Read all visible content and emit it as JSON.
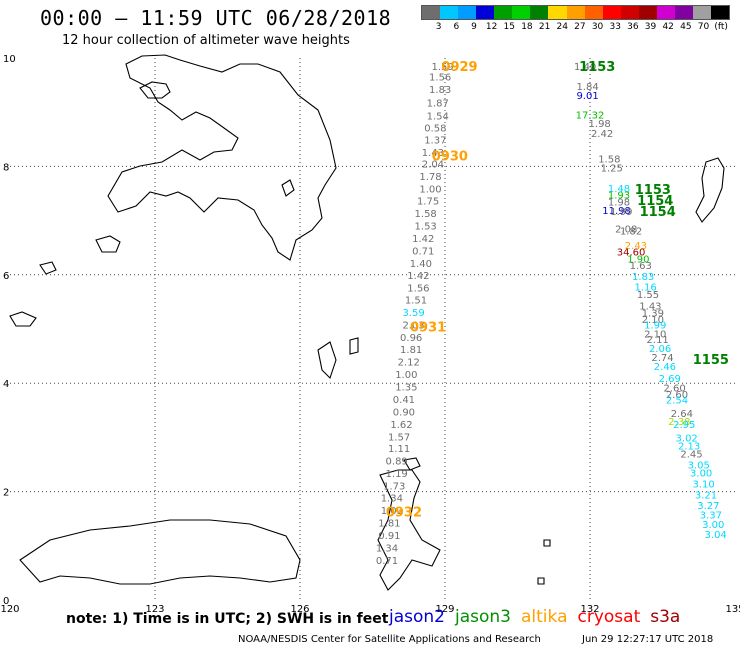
{
  "header": {
    "title": "00:00 — 11:59 UTC 06/28/2018",
    "subtitle": "12 hour collection of altimeter wave heights"
  },
  "colorbar": {
    "unit_label": "(ft)",
    "labels": [
      "3",
      "6",
      "9",
      "12",
      "15",
      "18",
      "21",
      "24",
      "27",
      "30",
      "33",
      "36",
      "39",
      "42",
      "45",
      "70"
    ],
    "colors": [
      "#6e6e6e",
      "#00c8ff",
      "#009cff",
      "#0000d8",
      "#00a000",
      "#00d000",
      "#008000",
      "#ffd800",
      "#ffa000",
      "#ff6000",
      "#ff0000",
      "#d00000",
      "#a00000",
      "#d000d0",
      "#8000a0",
      "#a0a0a0",
      "#000000"
    ]
  },
  "map": {
    "lon_ticks": [
      "120",
      "123",
      "126",
      "129",
      "132",
      "135"
    ],
    "lat_ticks": [
      "10",
      "8",
      "6",
      "4",
      "2",
      "0"
    ],
    "lon_range": [
      120,
      135
    ],
    "lat_range": [
      0,
      10
    ]
  },
  "tracks": [
    {
      "id": "west",
      "readings": [
        {
          "v": "1.59",
          "lon": 128.95,
          "lat": 9.85,
          "color": "#6e6e6e"
        },
        {
          "v": "1.56",
          "lon": 128.9,
          "lat": 9.66,
          "color": "#6e6e6e"
        },
        {
          "v": "1.83",
          "lon": 128.9,
          "lat": 9.43,
          "color": "#6e6e6e"
        },
        {
          "v": "1.87",
          "lon": 128.85,
          "lat": 9.18,
          "color": "#6e6e6e"
        },
        {
          "v": "1.54",
          "lon": 128.85,
          "lat": 8.94,
          "color": "#6e6e6e"
        },
        {
          "v": "0.58",
          "lon": 128.8,
          "lat": 8.72,
          "color": "#6e6e6e"
        },
        {
          "v": "1.37",
          "lon": 128.8,
          "lat": 8.5,
          "color": "#6e6e6e"
        },
        {
          "v": "1.43",
          "lon": 128.75,
          "lat": 8.27,
          "color": "#6e6e6e"
        },
        {
          "v": "2.04",
          "lon": 128.75,
          "lat": 8.05,
          "color": "#6e6e6e"
        },
        {
          "v": "1.78",
          "lon": 128.7,
          "lat": 7.82,
          "color": "#6e6e6e"
        },
        {
          "v": "1.00",
          "lon": 128.7,
          "lat": 7.59,
          "color": "#6e6e6e"
        },
        {
          "v": "1.75",
          "lon": 128.65,
          "lat": 7.37,
          "color": "#6e6e6e"
        },
        {
          "v": "1.58",
          "lon": 128.6,
          "lat": 7.14,
          "color": "#6e6e6e"
        },
        {
          "v": "1.53",
          "lon": 128.6,
          "lat": 6.91,
          "color": "#6e6e6e"
        },
        {
          "v": "1.42",
          "lon": 128.55,
          "lat": 6.68,
          "color": "#6e6e6e"
        },
        {
          "v": "0.71",
          "lon": 128.55,
          "lat": 6.45,
          "color": "#6e6e6e"
        },
        {
          "v": "1.40",
          "lon": 128.5,
          "lat": 6.22,
          "color": "#6e6e6e"
        },
        {
          "v": "1.42",
          "lon": 128.45,
          "lat": 6.0,
          "color": "#6e6e6e"
        },
        {
          "v": "1.56",
          "lon": 128.45,
          "lat": 5.77,
          "color": "#6e6e6e"
        },
        {
          "v": "1.51",
          "lon": 128.4,
          "lat": 5.54,
          "color": "#6e6e6e"
        },
        {
          "v": "3.59",
          "lon": 128.35,
          "lat": 5.31,
          "color": "#00d8ff"
        },
        {
          "v": "2.03",
          "lon": 128.35,
          "lat": 5.08,
          "color": "#6e6e6e"
        },
        {
          "v": "0.96",
          "lon": 128.3,
          "lat": 4.85,
          "color": "#6e6e6e"
        },
        {
          "v": "1.81",
          "lon": 128.3,
          "lat": 4.63,
          "color": "#6e6e6e"
        },
        {
          "v": "2.12",
          "lon": 128.25,
          "lat": 4.4,
          "color": "#6e6e6e"
        },
        {
          "v": "1.00",
          "lon": 128.2,
          "lat": 4.17,
          "color": "#6e6e6e"
        },
        {
          "v": "1.35",
          "lon": 128.2,
          "lat": 3.94,
          "color": "#6e6e6e"
        },
        {
          "v": "0.41",
          "lon": 128.15,
          "lat": 3.71,
          "color": "#6e6e6e"
        },
        {
          "v": "0.90",
          "lon": 128.15,
          "lat": 3.48,
          "color": "#6e6e6e"
        },
        {
          "v": "1.62",
          "lon": 128.1,
          "lat": 3.25,
          "color": "#6e6e6e"
        },
        {
          "v": "1.57",
          "lon": 128.05,
          "lat": 3.02,
          "color": "#6e6e6e"
        },
        {
          "v": "1.11",
          "lon": 128.05,
          "lat": 2.8,
          "color": "#6e6e6e"
        },
        {
          "v": "0.89",
          "lon": 128.0,
          "lat": 2.57,
          "color": "#6e6e6e"
        },
        {
          "v": "1.19",
          "lon": 128.0,
          "lat": 2.34,
          "color": "#6e6e6e"
        },
        {
          "v": "1.73",
          "lon": 127.95,
          "lat": 2.11,
          "color": "#6e6e6e"
        },
        {
          "v": "1.34",
          "lon": 127.9,
          "lat": 1.89,
          "color": "#6e6e6e"
        },
        {
          "v": "1.03",
          "lon": 127.9,
          "lat": 1.66,
          "color": "#6e6e6e"
        },
        {
          "v": "1.81",
          "lon": 127.85,
          "lat": 1.43,
          "color": "#6e6e6e"
        },
        {
          "v": "0.91",
          "lon": 127.85,
          "lat": 1.2,
          "color": "#6e6e6e"
        },
        {
          "v": "1.34",
          "lon": 127.8,
          "lat": 0.97,
          "color": "#6e6e6e"
        },
        {
          "v": "0.71",
          "lon": 127.8,
          "lat": 0.74,
          "color": "#6e6e6e"
        }
      ]
    },
    {
      "id": "east",
      "readings": [
        {
          "v": "1.40",
          "lon": 131.9,
          "lat": 9.85,
          "color": "#6e6e6e"
        },
        {
          "v": "1.84",
          "lon": 131.95,
          "lat": 9.48,
          "color": "#6e6e6e"
        },
        {
          "v": "9.01",
          "lon": 131.95,
          "lat": 9.32,
          "color": "#0000d8"
        },
        {
          "v": "17.32",
          "lon": 132.0,
          "lat": 8.96,
          "color": "#00c000"
        },
        {
          "v": "1.98",
          "lon": 132.2,
          "lat": 8.8,
          "color": "#6e6e6e"
        },
        {
          "v": "2.42",
          "lon": 132.25,
          "lat": 8.62,
          "color": "#6e6e6e"
        },
        {
          "v": "1.58",
          "lon": 132.4,
          "lat": 8.15,
          "color": "#6e6e6e"
        },
        {
          "v": "1.25",
          "lon": 132.45,
          "lat": 7.98,
          "color": "#6e6e6e"
        },
        {
          "v": "1.48",
          "lon": 132.6,
          "lat": 7.6,
          "color": "#00d8ff"
        },
        {
          "v": "1.93",
          "lon": 132.6,
          "lat": 7.48,
          "color": "#00c000"
        },
        {
          "v": "1.98",
          "lon": 132.6,
          "lat": 7.35,
          "color": "#6e6e6e"
        },
        {
          "v": "11.98",
          "lon": 132.55,
          "lat": 7.2,
          "color": "#0000d8"
        },
        {
          "v": "1.99",
          "lon": 132.65,
          "lat": 7.18,
          "color": "#6e6e6e"
        },
        {
          "v": "2.08",
          "lon": 132.75,
          "lat": 6.85,
          "color": "#6e6e6e"
        },
        {
          "v": "1.82",
          "lon": 132.85,
          "lat": 6.82,
          "color": "#6e6e6e"
        },
        {
          "v": "2.43",
          "lon": 132.95,
          "lat": 6.55,
          "color": "#ffa000"
        },
        {
          "v": "34.60",
          "lon": 132.85,
          "lat": 6.43,
          "color": "#a00000"
        },
        {
          "v": "1.90",
          "lon": 133.0,
          "lat": 6.3,
          "color": "#00c000"
        },
        {
          "v": "1.63",
          "lon": 133.05,
          "lat": 6.18,
          "color": "#6e6e6e"
        },
        {
          "v": "1.83",
          "lon": 133.1,
          "lat": 5.98,
          "color": "#00d8ff"
        },
        {
          "v": "1.16",
          "lon": 133.15,
          "lat": 5.78,
          "color": "#00d8ff"
        },
        {
          "v": "1.55",
          "lon": 133.2,
          "lat": 5.65,
          "color": "#6e6e6e"
        },
        {
          "v": "1.43",
          "lon": 133.25,
          "lat": 5.43,
          "color": "#6e6e6e"
        },
        {
          "v": "1.39",
          "lon": 133.3,
          "lat": 5.3,
          "color": "#6e6e6e"
        },
        {
          "v": "2.10",
          "lon": 133.3,
          "lat": 5.18,
          "color": "#6e6e6e"
        },
        {
          "v": "1.99",
          "lon": 133.35,
          "lat": 5.08,
          "color": "#00d8ff"
        },
        {
          "v": "2.10",
          "lon": 133.35,
          "lat": 4.92,
          "color": "#6e6e6e"
        },
        {
          "v": "2.11",
          "lon": 133.4,
          "lat": 4.82,
          "color": "#6e6e6e"
        },
        {
          "v": "2.06",
          "lon": 133.45,
          "lat": 4.65,
          "color": "#00d8ff"
        },
        {
          "v": "2.74",
          "lon": 133.5,
          "lat": 4.48,
          "color": "#6e6e6e"
        },
        {
          "v": "2.46",
          "lon": 133.55,
          "lat": 4.32,
          "color": "#00d8ff"
        },
        {
          "v": "2.69",
          "lon": 133.65,
          "lat": 4.1,
          "color": "#00d8ff"
        },
        {
          "v": "2.60",
          "lon": 133.75,
          "lat": 3.92,
          "color": "#6e6e6e"
        },
        {
          "v": "2.60",
          "lon": 133.8,
          "lat": 3.8,
          "color": "#6e6e6e"
        },
        {
          "v": "2.54",
          "lon": 133.8,
          "lat": 3.7,
          "color": "#00d8ff"
        },
        {
          "v": "2.64",
          "lon": 133.9,
          "lat": 3.45,
          "color": "#6e6e6e"
        },
        {
          "v": "2.38",
          "lon": 133.85,
          "lat": 3.3,
          "color": "#a0e000"
        },
        {
          "v": "2.95",
          "lon": 133.95,
          "lat": 3.25,
          "color": "#00d8ff"
        },
        {
          "v": "3.02",
          "lon": 134.0,
          "lat": 3.0,
          "color": "#00d8ff"
        },
        {
          "v": "2.13",
          "lon": 134.05,
          "lat": 2.85,
          "color": "#00d8ff"
        },
        {
          "v": "2.45",
          "lon": 134.1,
          "lat": 2.7,
          "color": "#6e6e6e"
        },
        {
          "v": "3.05",
          "lon": 134.25,
          "lat": 2.5,
          "color": "#00d8ff"
        },
        {
          "v": "3.00",
          "lon": 134.3,
          "lat": 2.35,
          "color": "#00d8ff"
        },
        {
          "v": "3.10",
          "lon": 134.35,
          "lat": 2.15,
          "color": "#00d8ff"
        },
        {
          "v": "3.21",
          "lon": 134.4,
          "lat": 1.95,
          "color": "#00d8ff"
        },
        {
          "v": "3.27",
          "lon": 134.45,
          "lat": 1.75,
          "color": "#00d8ff"
        },
        {
          "v": "3.37",
          "lon": 134.5,
          "lat": 1.58,
          "color": "#00d8ff"
        },
        {
          "v": "3.00",
          "lon": 134.55,
          "lat": 1.4,
          "color": "#00d8ff"
        },
        {
          "v": "3.04",
          "lon": 134.6,
          "lat": 1.22,
          "color": "#00d8ff"
        }
      ]
    }
  ],
  "time_labels": [
    {
      "t": "0929",
      "lon": 129.3,
      "lat": 9.85,
      "color": "#ffa000"
    },
    {
      "t": "0930",
      "lon": 129.1,
      "lat": 8.2,
      "color": "#ffa000"
    },
    {
      "t": "0931",
      "lon": 128.65,
      "lat": 5.05,
      "color": "#ffa000"
    },
    {
      "t": "0932",
      "lon": 128.15,
      "lat": 1.63,
      "color": "#ffa000"
    },
    {
      "t": "1153",
      "lon": 132.15,
      "lat": 9.85,
      "color": "#008000"
    },
    {
      "t": "1153",
      "lon": 133.3,
      "lat": 7.58,
      "color": "#008000"
    },
    {
      "t": "1154",
      "lon": 133.35,
      "lat": 7.38,
      "color": "#008000"
    },
    {
      "t": "1154",
      "lon": 133.4,
      "lat": 7.18,
      "color": "#008000"
    },
    {
      "t": "1155",
      "lon": 134.5,
      "lat": 4.45,
      "color": "#008000"
    }
  ],
  "footer": {
    "note": "note: 1) Time is in UTC; 2) SWH is in feet",
    "satellites": [
      {
        "name": "jason2",
        "color": "#0000d8"
      },
      {
        "name": "jason3",
        "color": "#009000"
      },
      {
        "name": "altika",
        "color": "#ffa000"
      },
      {
        "name": "cryosat",
        "color": "#ff0000"
      },
      {
        "name": "s3a",
        "color": "#a00000"
      }
    ],
    "credit": "NOAA/NESDIS Center for Satellite Applications and Research",
    "timestamp": "Jun 29 12:27:17 UTC 2018"
  }
}
